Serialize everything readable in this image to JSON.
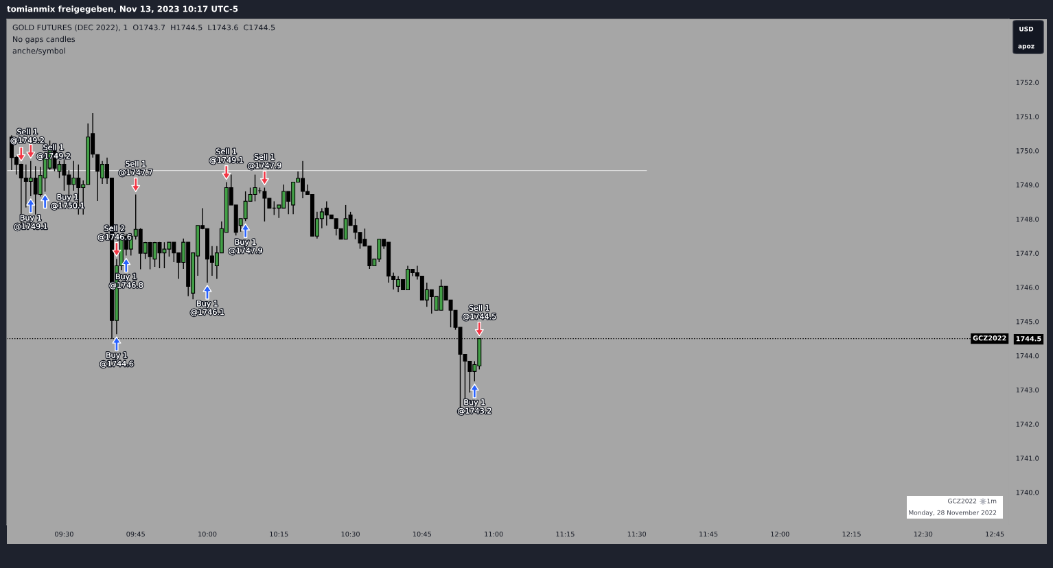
{
  "chart_data": {
    "type": "candlestick",
    "title": "GOLD FUTURES (DEC 2022), 1  O1743.7  H1744.5  L1743.6  C1744.5",
    "x": [
      "2022-11-28T09:19",
      "2022-11-28T09:20",
      "2022-11-28T09:21",
      "2022-11-28T09:22",
      "2022-11-28T09:23",
      "2022-11-28T09:24",
      "2022-11-28T09:25",
      "2022-11-28T09:26",
      "2022-11-28T09:27",
      "2022-11-28T09:28",
      "2022-11-28T09:29",
      "2022-11-28T09:30",
      "2022-11-28T09:31",
      "2022-11-28T09:32",
      "2022-11-28T09:33",
      "2022-11-28T09:34",
      "2022-11-28T09:35",
      "2022-11-28T09:36",
      "2022-11-28T09:37",
      "2022-11-28T09:38",
      "2022-11-28T09:39",
      "2022-11-28T09:40",
      "2022-11-28T09:41",
      "2022-11-28T09:42",
      "2022-11-28T09:43",
      "2022-11-28T09:44",
      "2022-11-28T09:45",
      "2022-11-28T09:46",
      "2022-11-28T09:47",
      "2022-11-28T09:48",
      "2022-11-28T09:49",
      "2022-11-28T09:50",
      "2022-11-28T09:51",
      "2022-11-28T09:52",
      "2022-11-28T09:53",
      "2022-11-28T09:54",
      "2022-11-28T09:55",
      "2022-11-28T09:56",
      "2022-11-28T09:57",
      "2022-11-28T09:58",
      "2022-11-28T09:59",
      "2022-11-28T10:00",
      "2022-11-28T10:01",
      "2022-11-28T10:02",
      "2022-11-28T10:03",
      "2022-11-28T10:04",
      "2022-11-28T10:05",
      "2022-11-28T10:06",
      "2022-11-28T10:07",
      "2022-11-28T10:08",
      "2022-11-28T10:09",
      "2022-11-28T10:10",
      "2022-11-28T10:11",
      "2022-11-28T10:12",
      "2022-11-28T10:13",
      "2022-11-28T10:14",
      "2022-11-28T10:15",
      "2022-11-28T10:16",
      "2022-11-28T10:17",
      "2022-11-28T10:18",
      "2022-11-28T10:19",
      "2022-11-28T10:20",
      "2022-11-28T10:21",
      "2022-11-28T10:22",
      "2022-11-28T10:23",
      "2022-11-28T10:24",
      "2022-11-28T10:25",
      "2022-11-28T10:26",
      "2022-11-28T10:27",
      "2022-11-28T10:28",
      "2022-11-28T10:29",
      "2022-11-28T10:30",
      "2022-11-28T10:31",
      "2022-11-28T10:32",
      "2022-11-28T10:33",
      "2022-11-28T10:34",
      "2022-11-28T10:35",
      "2022-11-28T10:36",
      "2022-11-28T10:37",
      "2022-11-28T10:38",
      "2022-11-28T10:39",
      "2022-11-28T10:40",
      "2022-11-28T10:41",
      "2022-11-28T10:42",
      "2022-11-28T10:43",
      "2022-11-28T10:44",
      "2022-11-28T10:45",
      "2022-11-28T10:46",
      "2022-11-28T10:47",
      "2022-11-28T10:48",
      "2022-11-28T10:49",
      "2022-11-28T10:50",
      "2022-11-28T10:51",
      "2022-11-28T10:52",
      "2022-11-28T10:53",
      "2022-11-28T10:54",
      "2022-11-28T10:55",
      "2022-11-28T10:56",
      "2022-11-28T10:57"
    ],
    "ohlc": [
      [
        1750.4,
        1750.45,
        1749.43,
        1749.8
      ],
      [
        1749.8,
        1749.85,
        1749.3,
        1749.6
      ],
      [
        1749.6,
        1749.62,
        1747.83,
        1749.2
      ],
      [
        1749.2,
        1749.6,
        1748.34,
        1749.1
      ],
      [
        1749.1,
        1749.7,
        1748.67,
        1749.2
      ],
      [
        1749.2,
        1749.55,
        1748.13,
        1748.73
      ],
      [
        1748.72,
        1749.53,
        1748.66,
        1749.28
      ],
      [
        1749.2,
        1749.84,
        1748.8,
        1749.79
      ],
      [
        1749.49,
        1750.3,
        1749.44,
        1750.1
      ],
      [
        1750.08,
        1750.1,
        1749.4,
        1749.49
      ],
      [
        1749.4,
        1749.7,
        1749.2,
        1749.6
      ],
      [
        1749.6,
        1749.73,
        1748.83,
        1749.29
      ],
      [
        1749.29,
        1749.43,
        1748.4,
        1749.01
      ],
      [
        1749.01,
        1749.7,
        1748.83,
        1749.2
      ],
      [
        1749.2,
        1749.6,
        1748.13,
        1748.92
      ],
      [
        1748.92,
        1749.13,
        1748.13,
        1749.01
      ],
      [
        1749.01,
        1750.8,
        1749.0,
        1750.4
      ],
      [
        1750.5,
        1751.1,
        1749.8,
        1749.9
      ],
      [
        1749.89,
        1749.89,
        1748.53,
        1749.4
      ],
      [
        1749.2,
        1749.7,
        1749.03,
        1749.6
      ],
      [
        1749.6,
        1749.8,
        1749.03,
        1749.2
      ],
      [
        1749.2,
        1749.2,
        1744.49,
        1745.03
      ],
      [
        1745.03,
        1746.83,
        1744.63,
        1746.63
      ],
      [
        1746.63,
        1747.53,
        1746.5,
        1747.5
      ],
      [
        1747.5,
        1747.57,
        1746.93,
        1747.12
      ],
      [
        1747.12,
        1747.57,
        1746.93,
        1747.5
      ],
      [
        1747.5,
        1748.72,
        1747.4,
        1747.7
      ],
      [
        1747.7,
        1747.73,
        1746.53,
        1747.0
      ],
      [
        1747.0,
        1747.33,
        1746.83,
        1747.31
      ],
      [
        1747.31,
        1747.33,
        1746.53,
        1746.9
      ],
      [
        1746.83,
        1747.33,
        1746.6,
        1747.31
      ],
      [
        1747.31,
        1747.33,
        1746.56,
        1747.01
      ],
      [
        1747.01,
        1747.32,
        1746.56,
        1747.12
      ],
      [
        1747.12,
        1747.32,
        1746.9,
        1747.32
      ],
      [
        1747.32,
        1747.32,
        1746.74,
        1747.01
      ],
      [
        1747.01,
        1747.01,
        1746.25,
        1746.73
      ],
      [
        1746.73,
        1747.43,
        1746.54,
        1747.32
      ],
      [
        1747.32,
        1747.32,
        1745.74,
        1746.03
      ],
      [
        1745.83,
        1747.01,
        1745.65,
        1747.01
      ],
      [
        1746.92,
        1747.81,
        1746.34,
        1747.81
      ],
      [
        1747.81,
        1748.32,
        1747.7,
        1747.72
      ],
      [
        1747.72,
        1747.72,
        1746.14,
        1746.83
      ],
      [
        1746.92,
        1747.21,
        1746.34,
        1746.73
      ],
      [
        1746.63,
        1747.21,
        1746.25,
        1747.01
      ],
      [
        1747.01,
        1747.93,
        1747.0,
        1747.72
      ],
      [
        1747.61,
        1749.08,
        1747.61,
        1748.92
      ],
      [
        1748.92,
        1749.3,
        1748.41,
        1748.41
      ],
      [
        1748.41,
        1748.41,
        1747.52,
        1747.61
      ],
      [
        1747.81,
        1748.01,
        1747.63,
        1748.01
      ],
      [
        1748.01,
        1748.81,
        1747.94,
        1748.52
      ],
      [
        1748.52,
        1748.92,
        1748.52,
        1748.72
      ],
      [
        1748.72,
        1749.3,
        1748.52,
        1748.92
      ],
      [
        1748.83,
        1748.92,
        1748.75,
        1748.83
      ],
      [
        1748.81,
        1748.92,
        1747.93,
        1748.61
      ],
      [
        1748.61,
        1748.61,
        1748.32,
        1748.32
      ],
      [
        1748.32,
        1748.52,
        1748.12,
        1748.32
      ],
      [
        1748.32,
        1748.41,
        1748.03,
        1748.41
      ],
      [
        1748.32,
        1749.01,
        1748.32,
        1748.81
      ],
      [
        1748.81,
        1748.81,
        1748.14,
        1748.52
      ],
      [
        1748.41,
        1749.08,
        1748.14,
        1749.08
      ],
      [
        1749.08,
        1749.39,
        1749.08,
        1749.19
      ],
      [
        1749.19,
        1749.7,
        1748.61,
        1748.81
      ],
      [
        1748.81,
        1749.01,
        1748.72,
        1748.72
      ],
      [
        1748.72,
        1748.72,
        1747.5,
        1747.5
      ],
      [
        1747.5,
        1748.21,
        1747.43,
        1748.01
      ],
      [
        1748.01,
        1748.32,
        1747.73,
        1748.21
      ],
      [
        1748.32,
        1748.52,
        1747.81,
        1748.12
      ],
      [
        1748.12,
        1748.12,
        1748.01,
        1748.01
      ],
      [
        1748.01,
        1748.01,
        1747.52,
        1747.72
      ],
      [
        1747.72,
        1747.72,
        1747.41,
        1747.41
      ],
      [
        1747.41,
        1748.41,
        1747.41,
        1748.01
      ],
      [
        1748.12,
        1748.21,
        1747.81,
        1747.81
      ],
      [
        1747.81,
        1748.01,
        1747.41,
        1747.61
      ],
      [
        1747.61,
        1747.61,
        1747.13,
        1747.3
      ],
      [
        1747.41,
        1747.72,
        1747.21,
        1747.21
      ],
      [
        1747.21,
        1747.21,
        1746.54,
        1746.63
      ],
      [
        1746.63,
        1746.83,
        1746.63,
        1746.83
      ],
      [
        1746.83,
        1747.41,
        1746.74,
        1747.41
      ],
      [
        1747.41,
        1747.41,
        1747.13,
        1747.21
      ],
      [
        1747.32,
        1747.32,
        1746.14,
        1746.33
      ],
      [
        1746.33,
        1746.43,
        1745.94,
        1746.23
      ],
      [
        1746.03,
        1746.33,
        1745.86,
        1746.23
      ],
      [
        1746.23,
        1746.23,
        1745.93,
        1745.93
      ],
      [
        1745.93,
        1746.63,
        1745.93,
        1746.53
      ],
      [
        1746.53,
        1746.53,
        1746.33,
        1746.43
      ],
      [
        1746.43,
        1746.63,
        1746.23,
        1746.33
      ],
      [
        1746.33,
        1746.33,
        1745.63,
        1745.63
      ],
      [
        1745.63,
        1746.14,
        1745.43,
        1745.93
      ],
      [
        1745.93,
        1745.93,
        1745.23,
        1745.73
      ],
      [
        1745.33,
        1745.73,
        1745.33,
        1745.73
      ],
      [
        1745.33,
        1746.23,
        1745.33,
        1746.03
      ],
      [
        1746.03,
        1746.03,
        1745.63,
        1745.63
      ],
      [
        1745.63,
        1745.63,
        1744.83,
        1745.33
      ],
      [
        1745.33,
        1745.33,
        1744.76,
        1744.83
      ],
      [
        1744.83,
        1744.83,
        1742.39,
        1744.04
      ],
      [
        1744.04,
        1744.04,
        1742.52,
        1743.84
      ],
      [
        1743.84,
        1743.84,
        1742.92,
        1743.54
      ],
      [
        1743.54,
        1743.84,
        1743.25,
        1743.74
      ],
      [
        1743.7,
        1744.5,
        1743.6,
        1744.5
      ]
    ],
    "colors": [
      "#000000",
      "#000000",
      "#000000",
      "#000000",
      "#43a047",
      "#000000",
      "#43a047",
      "#43a047",
      "#43a047",
      "#000000",
      "#43a047",
      "#000000",
      "#000000",
      "#43a047",
      "#000000",
      "#43a047",
      "#43a047",
      "#000000",
      "#000000",
      "#43a047",
      "#000000",
      "#000000",
      "#43a047",
      "#43a047",
      "#000000",
      "#43a047",
      "#43a047",
      "#000000",
      "#43a047",
      "#000000",
      "#43a047",
      "#000000",
      "#43a047",
      "#43a047",
      "#000000",
      "#000000",
      "#43a047",
      "#000000",
      "#43a047",
      "#43a047",
      "#000000",
      "#000000",
      "#000000",
      "#43a047",
      "#43a047",
      "#43a047",
      "#000000",
      "#000000",
      "#43a047",
      "#43a047",
      "#43a047",
      "#43a047",
      "#000000",
      "#000000",
      "#000000",
      "#000000",
      "#43a047",
      "#43a047",
      "#000000",
      "#43a047",
      "#43a047",
      "#000000",
      "#000000",
      "#000000",
      "#43a047",
      "#43a047",
      "#000000",
      "#000000",
      "#000000",
      "#000000",
      "#43a047",
      "#000000",
      "#000000",
      "#000000",
      "#000000",
      "#000000",
      "#43a047",
      "#43a047",
      "#000000",
      "#000000",
      "#000000",
      "#43a047",
      "#000000",
      "#43a047",
      "#000000",
      "#000000",
      "#000000",
      "#43a047",
      "#000000",
      "#43a047",
      "#43a047",
      "#000000",
      "#000000",
      "#000000",
      "#000000",
      "#000000",
      "#000000",
      "#43a047",
      "#43a047"
    ],
    "series": [
      {
        "type": "line",
        "x": [
          "2022-11-28T09:18",
          "2022-11-28T11:32"
        ],
        "values": [
          1749.42,
          1749.42
        ],
        "color": "#dcdcdc"
      }
    ],
    "ref_lines": [
      {
        "axis": "y",
        "value": 1744.5,
        "label": "GCZ2022",
        "color": "#000000",
        "line_style": "dotted"
      }
    ],
    "annotations": [
      "tomianmix freigegeben, Nov 13, 2023 10:17 UTC-5",
      "No gaps candles",
      "anche/symbol",
      "USD",
      "apoz",
      "GCZ2022",
      "1m",
      "Monday, 28 November 2022",
      {
        "text": "Sell 1\n@1749.2",
        "x": "2022-11-28T09:21",
        "y": 1749.62
      },
      {
        "text": "Sell 1\n@1749.2",
        "x": "2022-11-28T09:23",
        "y": 1749.7
      },
      {
        "text": "Buy 1\n@1749.1",
        "x": "2022-11-28T09:23",
        "y": 1748.67
      },
      {
        "text": "Buy 1\n@1750.1",
        "x": "2022-11-28T09:26",
        "y": 1748.8
      },
      {
        "text": "Sell 2\n@1746.6",
        "x": "2022-11-28T09:41",
        "y": 1746.83
      },
      {
        "text": "Buy 1\n@1744.6",
        "x": "2022-11-28T09:41",
        "y": 1744.63
      },
      {
        "text": "Buy 1\n@1746.8",
        "x": "2022-11-28T09:43",
        "y": 1746.93
      },
      {
        "text": "Sell 1\n@1747.7",
        "x": "2022-11-28T09:45",
        "y": 1748.72
      },
      {
        "text": "Buy 1\n@1746.1",
        "x": "2022-11-28T10:00",
        "y": 1746.14
      },
      {
        "text": "Sell 1\n@1749.1",
        "x": "2022-11-28T10:04",
        "y": 1749.08
      },
      {
        "text": "Buy 1\n@1747.9",
        "x": "2022-11-28T10:08",
        "y": 1747.94
      },
      {
        "text": "Sell 1\n@1747.9",
        "x": "2022-11-28T10:12",
        "y": 1748.92
      },
      {
        "text": "Buy 1\n@1743.2",
        "x": "2022-11-28T10:56",
        "y": 1743.25
      },
      {
        "text": "Sell 1\n@1744.5",
        "x": "2022-11-28T10:57",
        "y": 1744.5
      }
    ],
    "xlim": [
      "2022-11-28T09:18",
      "2022-11-28T12:48"
    ],
    "xticks": [
      {
        "value": "2022-11-28T09:30",
        "label": "09:30"
      },
      {
        "value": "2022-11-28T09:45",
        "label": "09:45"
      },
      {
        "value": "2022-11-28T10:00",
        "label": "10:00"
      },
      {
        "value": "2022-11-28T10:15",
        "label": "10:15"
      },
      {
        "value": "2022-11-28T10:30",
        "label": "10:30"
      },
      {
        "value": "2022-11-28T10:45",
        "label": "10:45"
      },
      {
        "value": "2022-11-28T11:00",
        "label": "11:00"
      },
      {
        "value": "2022-11-28T11:15",
        "label": "11:15"
      },
      {
        "value": "2022-11-28T11:30",
        "label": "11:30"
      },
      {
        "value": "2022-11-28T11:45",
        "label": "11:45"
      },
      {
        "value": "2022-11-28T12:00",
        "label": "12:00"
      },
      {
        "value": "2022-11-28T12:15",
        "label": "12:15"
      },
      {
        "value": "2022-11-28T12:30",
        "label": "12:30"
      },
      {
        "value": "2022-11-28T12:45",
        "label": "12:45"
      }
    ],
    "ylim": [
      1739.05,
      1753.85
    ],
    "yticks": [
      {
        "value": 1740,
        "label": "1740.0"
      },
      {
        "value": 1741,
        "label": "1741.0"
      },
      {
        "value": 1742,
        "label": "1742.0"
      },
      {
        "value": 1743,
        "label": "1743.0"
      },
      {
        "value": 1744,
        "label": "1744.0"
      },
      {
        "value": 1744.5,
        "label": "1744.5"
      },
      {
        "value": 1745,
        "label": "1745.0"
      },
      {
        "value": 1746,
        "label": "1746.0"
      },
      {
        "value": 1747,
        "label": "1747.0"
      },
      {
        "value": 1748,
        "label": "1748.0"
      },
      {
        "value": 1749,
        "label": "1749.0"
      },
      {
        "value": 1750,
        "label": "1750.0"
      },
      {
        "value": 1751,
        "label": "1751.0"
      },
      {
        "value": 1752,
        "label": "1752.0"
      }
    ]
  }
}
